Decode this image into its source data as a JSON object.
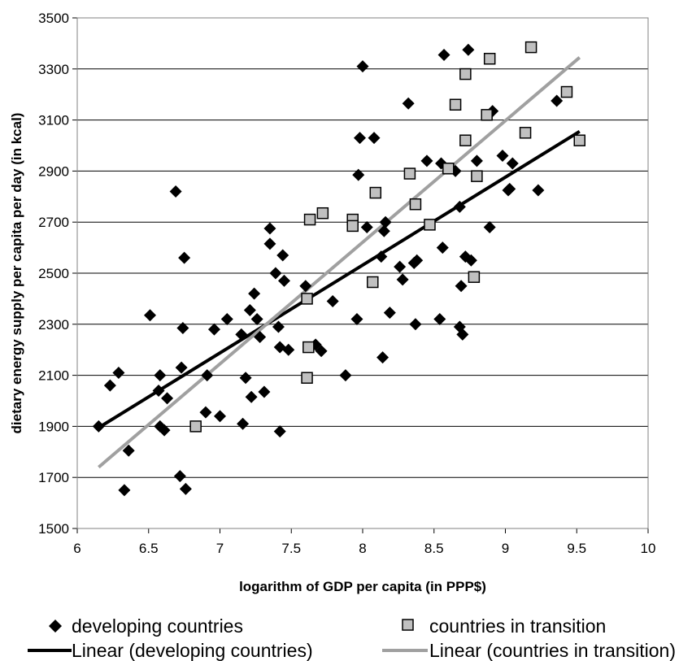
{
  "chart_data": {
    "type": "scatter",
    "title": "",
    "xlabel": "logarithm of GDP per capita (in PPP$)",
    "ylabel": "dietary energy supply per capita per day (in kcal)",
    "xlim": [
      6,
      10
    ],
    "ylim": [
      1500,
      3500
    ],
    "x_ticks": [
      6,
      6.5,
      7,
      7.5,
      8,
      8.5,
      9,
      9.5,
      10
    ],
    "x_tick_labels": [
      "6",
      "6.5",
      "7",
      "7.5",
      "8",
      "8.5",
      "9",
      "9.5",
      "10"
    ],
    "y_ticks": [
      1500,
      1700,
      1900,
      2100,
      2300,
      2500,
      2700,
      2900,
      3100,
      3300,
      3500
    ],
    "y_tick_labels": [
      "1500",
      "1700",
      "1900",
      "2100",
      "2300",
      "2500",
      "2700",
      "2900",
      "3100",
      "3300",
      "3500"
    ],
    "grid": "horizontal",
    "legend_position": "bottom",
    "series": [
      {
        "name": "developing countries",
        "marker": "diamond",
        "color": "#000000",
        "points": [
          [
            6.15,
            1900
          ],
          [
            6.23,
            2060
          ],
          [
            6.29,
            2110
          ],
          [
            6.33,
            1650
          ],
          [
            6.36,
            1805
          ],
          [
            6.51,
            2335
          ],
          [
            6.57,
            2040
          ],
          [
            6.58,
            2100
          ],
          [
            6.58,
            1900
          ],
          [
            6.61,
            1885
          ],
          [
            6.63,
            2010
          ],
          [
            6.69,
            2820
          ],
          [
            6.72,
            1705
          ],
          [
            6.73,
            2130
          ],
          [
            6.74,
            2285
          ],
          [
            6.75,
            2560
          ],
          [
            6.76,
            1655
          ],
          [
            6.9,
            1955
          ],
          [
            6.91,
            2100
          ],
          [
            6.96,
            2280
          ],
          [
            7.0,
            1940
          ],
          [
            7.05,
            2320
          ],
          [
            7.15,
            2260
          ],
          [
            7.16,
            1910
          ],
          [
            7.18,
            2090
          ],
          [
            7.21,
            2355
          ],
          [
            7.22,
            2015
          ],
          [
            7.24,
            2420
          ],
          [
            7.26,
            2320
          ],
          [
            7.28,
            2250
          ],
          [
            7.31,
            2035
          ],
          [
            7.35,
            2675
          ],
          [
            7.35,
            2615
          ],
          [
            7.39,
            2500
          ],
          [
            7.41,
            2290
          ],
          [
            7.42,
            2210
          ],
          [
            7.42,
            1880
          ],
          [
            7.44,
            2570
          ],
          [
            7.45,
            2470
          ],
          [
            7.48,
            2200
          ],
          [
            7.6,
            2450
          ],
          [
            7.67,
            2220
          ],
          [
            7.71,
            2195
          ],
          [
            7.79,
            2390
          ],
          [
            7.88,
            2100
          ],
          [
            7.96,
            2320
          ],
          [
            7.97,
            2885
          ],
          [
            7.98,
            3030
          ],
          [
            8.0,
            3310
          ],
          [
            8.03,
            2680
          ],
          [
            8.08,
            3030
          ],
          [
            8.13,
            2565
          ],
          [
            8.14,
            2170
          ],
          [
            8.15,
            2665
          ],
          [
            8.16,
            2700
          ],
          [
            8.19,
            2345
          ],
          [
            8.26,
            2525
          ],
          [
            8.28,
            2475
          ],
          [
            8.32,
            3165
          ],
          [
            8.36,
            2540
          ],
          [
            8.37,
            2300
          ],
          [
            8.38,
            2550
          ],
          [
            8.45,
            2940
          ],
          [
            8.54,
            2320
          ],
          [
            8.55,
            2930
          ],
          [
            8.56,
            2600
          ],
          [
            8.57,
            3355
          ],
          [
            8.65,
            2900
          ],
          [
            8.68,
            2760
          ],
          [
            8.68,
            2290
          ],
          [
            8.69,
            2450
          ],
          [
            8.7,
            2260
          ],
          [
            8.72,
            2565
          ],
          [
            8.74,
            3375
          ],
          [
            8.76,
            2550
          ],
          [
            8.8,
            2940
          ],
          [
            8.89,
            2680
          ],
          [
            8.91,
            3135
          ],
          [
            8.98,
            2960
          ],
          [
            9.02,
            2825
          ],
          [
            9.03,
            2830
          ],
          [
            9.05,
            2930
          ],
          [
            9.23,
            2825
          ],
          [
            9.36,
            3175
          ]
        ]
      },
      {
        "name": "countries in transition",
        "marker": "square",
        "color": "#c0c0c0",
        "points": [
          [
            6.83,
            1900
          ],
          [
            7.61,
            2090
          ],
          [
            7.61,
            2400
          ],
          [
            7.62,
            2210
          ],
          [
            7.63,
            2710
          ],
          [
            7.72,
            2735
          ],
          [
            7.93,
            2710
          ],
          [
            7.93,
            2685
          ],
          [
            8.07,
            2465
          ],
          [
            8.09,
            2815
          ],
          [
            8.33,
            2890
          ],
          [
            8.37,
            2770
          ],
          [
            8.47,
            2690
          ],
          [
            8.6,
            2910
          ],
          [
            8.65,
            3160
          ],
          [
            8.72,
            3280
          ],
          [
            8.72,
            3020
          ],
          [
            8.78,
            2485
          ],
          [
            8.8,
            2880
          ],
          [
            8.87,
            3120
          ],
          [
            8.89,
            3340
          ],
          [
            9.14,
            3050
          ],
          [
            9.18,
            3385
          ],
          [
            9.43,
            3210
          ],
          [
            9.52,
            3020
          ]
        ]
      },
      {
        "name": "Linear (developing countries)",
        "marker": "line",
        "color": "#000000",
        "points": [
          [
            6.15,
            1895
          ],
          [
            9.52,
            3055
          ]
        ]
      },
      {
        "name": "Linear (countries in transition)",
        "marker": "line",
        "color": "#a0a0a0",
        "points": [
          [
            6.15,
            1740
          ],
          [
            9.52,
            3345
          ]
        ]
      }
    ]
  }
}
